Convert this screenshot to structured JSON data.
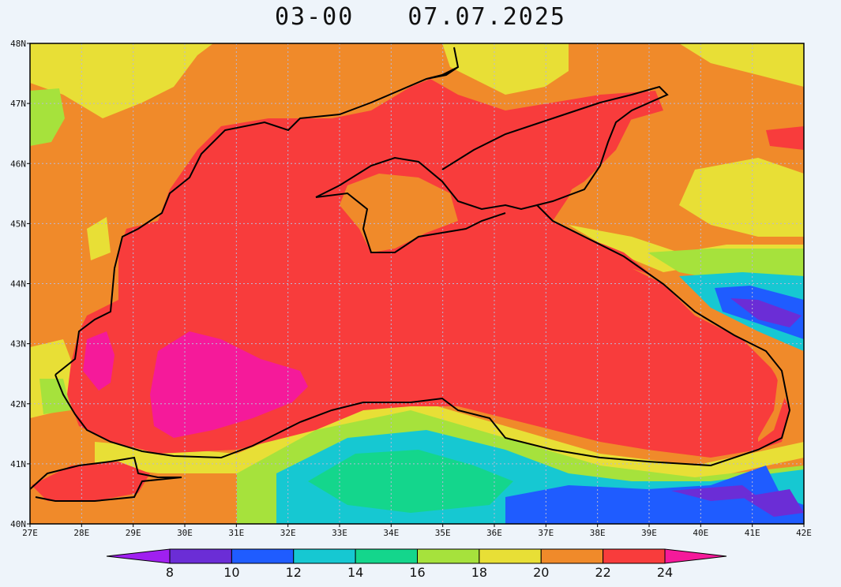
{
  "title": {
    "time": "03-00",
    "date": "07.07.2025"
  },
  "map": {
    "lon_range": [
      27,
      42
    ],
    "lat_range": [
      40,
      48
    ],
    "lon_labels": [
      "27E",
      "28E",
      "29E",
      "30E",
      "31E",
      "32E",
      "33E",
      "34E",
      "35E",
      "36E",
      "37E",
      "38E",
      "39E",
      "40E",
      "41E",
      "42E"
    ],
    "lat_labels": [
      "40N",
      "41N",
      "42N",
      "43N",
      "44N",
      "45N",
      "46N",
      "47N",
      "48N"
    ],
    "gridlines": "dotted",
    "variable": "sea surface temperature field, contour shaded"
  },
  "colorbar": {
    "levels": [
      "8",
      "10",
      "12",
      "14",
      "16",
      "18",
      "20",
      "22",
      "24"
    ],
    "colors": [
      "#a020f0",
      "#6b2dd6",
      "#1f5cff",
      "#16c8d2",
      "#14d68c",
      "#a6e23c",
      "#e8df36",
      "#f08a2a",
      "#f83c3c",
      "#f51a9a"
    ],
    "extend": "both"
  }
}
